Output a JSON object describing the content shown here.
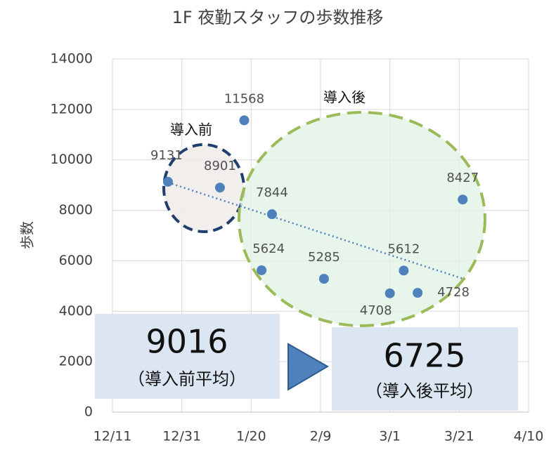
{
  "chart_data": {
    "type": "scatter",
    "title": "1F 夜勤スタッフの歩数推移",
    "ylabel": "歩数",
    "x": [
      16,
      31,
      38,
      43,
      46,
      61,
      80,
      84,
      88,
      101
    ],
    "values": [
      9131,
      8901,
      11568,
      5624,
      7844,
      5285,
      4708,
      5612,
      4728,
      8427
    ],
    "color": "#4f81bd",
    "xlim": [
      0,
      120
    ],
    "xticks": [
      {
        "value": 0,
        "label": "12/11"
      },
      {
        "value": 20,
        "label": "12/31"
      },
      {
        "value": 40,
        "label": "1/20"
      },
      {
        "value": 60,
        "label": "2/9"
      },
      {
        "value": 80,
        "label": "3/1"
      },
      {
        "value": 100,
        "label": "3/21"
      },
      {
        "value": 120,
        "label": "4/10"
      }
    ],
    "ylim": [
      0,
      14000
    ],
    "yticks": [
      0,
      2000,
      4000,
      6000,
      8000,
      10000,
      12000,
      14000
    ],
    "grid": true,
    "trendline": true,
    "annotations": {
      "before_label": "導入前",
      "after_label": "導入後",
      "before_avg": "9016",
      "before_avg_note": "（導入前平均）",
      "after_avg": "6725",
      "after_avg_note": "（導入後平均）"
    }
  }
}
